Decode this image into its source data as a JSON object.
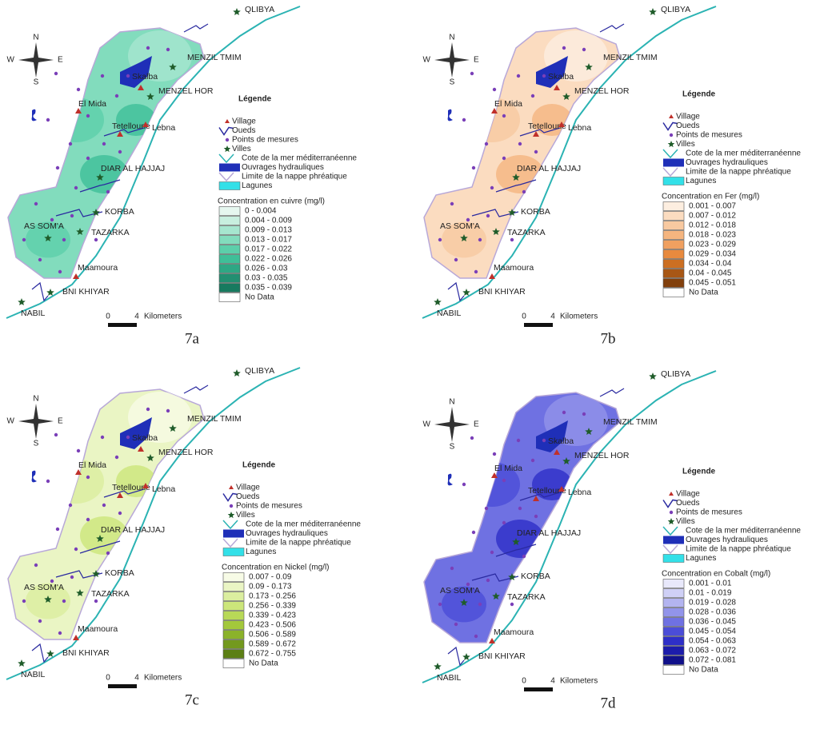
{
  "panels": [
    {
      "caption": "7a",
      "compass": {
        "n": "N",
        "s": "S",
        "e": "E",
        "w": "W"
      },
      "places": [
        "QLIBYA",
        "MENZIL TMIM",
        "Skalba",
        "MENZEL HOR",
        "El Mida",
        "Tetelloune",
        "Lebna",
        "DIAR AL HAJJAJ",
        "KORBA",
        "AS SOM'A",
        "TAZARKA",
        "Maamoura",
        "BNI KHIYAR",
        "NABIL"
      ],
      "legend": {
        "title": "Légende",
        "items": [
          "Village",
          "Oueds",
          "Points de mesures",
          "Villes",
          "Cote de la mer méditerranéenne",
          "Ouvrages hydrauliques",
          "Limite de la nappe phréatique",
          "Lagunes"
        ],
        "scale_title": "Concentration en cuivre (mg/l)",
        "classes": [
          {
            "label": "0 - 0.004",
            "color": "#e6f7ef"
          },
          {
            "label": "0.004 - 0.009",
            "color": "#c8efdf"
          },
          {
            "label": "0.009 - 0.013",
            "color": "#a6e6cf"
          },
          {
            "label": "0.013 - 0.017",
            "color": "#82dcbd"
          },
          {
            "label": "0.017 - 0.022",
            "color": "#5ccfaa"
          },
          {
            "label": "0.022 - 0.026",
            "color": "#3fbf98"
          },
          {
            "label": "0.026 - 0.03",
            "color": "#2ea784"
          },
          {
            "label": "0.03 - 0.035",
            "color": "#228f71"
          },
          {
            "label": "0.035 - 0.039",
            "color": "#177a5f"
          }
        ],
        "no_data": "No Data"
      },
      "scale": {
        "start": "0",
        "end": "4",
        "unit": "Kilometers"
      }
    },
    {
      "caption": "7b",
      "compass": {
        "n": "N",
        "s": "S",
        "e": "E",
        "w": "W"
      },
      "places": [
        "QLIBYA",
        "MENZIL TMIM",
        "Skalba",
        "MENZEL HOR",
        "El Mida",
        "Tetelloune",
        "Lebna",
        "DIAR AL HAJJAJ",
        "KORBA",
        "AS SOM'A",
        "TAZARKA",
        "Maamoura",
        "BNI KHIYAR",
        "NABIL"
      ],
      "legend": {
        "title": "Légende",
        "items": [
          "Village",
          "Oueds",
          "Points de mesures",
          "Villes",
          "Cote de la mer méditerranéenne",
          "Ouvrages hydrauliques",
          "Limite de la nappe phréatique",
          "Lagunes"
        ],
        "scale_title": "Concentration en Fer  (mg/l)",
        "classes": [
          {
            "label": "0.001 - 0.007",
            "color": "#fdeee0"
          },
          {
            "label": "0.007 - 0.012",
            "color": "#fbdcc0"
          },
          {
            "label": "0.012 - 0.018",
            "color": "#f8c9a0"
          },
          {
            "label": "0.018 - 0.023",
            "color": "#f5b57f"
          },
          {
            "label": "0.023 - 0.029",
            "color": "#f0a060"
          },
          {
            "label": "0.029 - 0.034",
            "color": "#e88a3e"
          },
          {
            "label": "0.034 - 0.04",
            "color": "#cc6f22"
          },
          {
            "label": "0.04 - 0.045",
            "color": "#a85715"
          },
          {
            "label": "0.045 - 0.051",
            "color": "#82400c"
          }
        ],
        "no_data": "No Data"
      },
      "scale": {
        "start": "0",
        "end": "4",
        "unit": "Kilometers"
      }
    },
    {
      "caption": "7c",
      "compass": {
        "n": "N",
        "s": "S",
        "e": "E",
        "w": "W"
      },
      "places": [
        "QLIBYA",
        "MENZIL TMIM",
        "Skalba",
        "MENZEL HOR",
        "El Mida",
        "Tetelloune",
        "Lebna",
        "DIAR AL HAJJAJ",
        "KORBA",
        "AS SOM'A",
        "TAZARKA",
        "Maamoura",
        "BNI KHIYAR",
        "NABIL"
      ],
      "legend": {
        "title": "Légende",
        "items": [
          "Village",
          "Oueds",
          "Points de mesures",
          "Villes",
          "Cote de la mer méditerranéenne",
          "Ouvrages hydrauliques",
          "Limite de la nappe phréatique",
          "Lagunes"
        ],
        "scale_title": "Concentration en Nickel (mg/l)",
        "classes": [
          {
            "label": "0.007 - 0.09",
            "color": "#f7fbe6"
          },
          {
            "label": "0.09 - 0.173",
            "color": "#eaf5c4"
          },
          {
            "label": "0.173 - 0.256",
            "color": "#dbee9f"
          },
          {
            "label": "0.256 - 0.339",
            "color": "#cce67a"
          },
          {
            "label": "0.339 - 0.423",
            "color": "#b8d957"
          },
          {
            "label": "0.423 - 0.506",
            "color": "#a3c83b"
          },
          {
            "label": "0.506 - 0.589",
            "color": "#8bb22a"
          },
          {
            "label": "0.589 - 0.672",
            "color": "#73991e"
          },
          {
            "label": "0.672 - 0.755",
            "color": "#5c7f14"
          }
        ],
        "no_data": "No Data"
      },
      "scale": {
        "start": "0",
        "end": "4",
        "unit": "Kilometers"
      }
    },
    {
      "caption": "7d",
      "compass": {
        "n": "N",
        "s": "S",
        "e": "E",
        "w": "W"
      },
      "places": [
        "QLIBYA",
        "MENZIL TMIM",
        "Skalba",
        "MENZEL HOR",
        "El Mida",
        "Tetelloune",
        "Lebna",
        "DIAR AL HAJJAJ",
        "KORBA",
        "AS SOM'A",
        "TAZARKA",
        "Maamoura",
        "BNI KHIYAR",
        "NABIL"
      ],
      "legend": {
        "title": "Légende",
        "items": [
          "Village",
          "Oueds",
          "Points de mesures",
          "Villes",
          "Cote de la mer méditerranéenne",
          "Ouvrages hydrauliques",
          "Limite de la nappe phréatique",
          "Lagunes"
        ],
        "scale_title": "Concentration en Cobalt (mg/l)",
        "classes": [
          {
            "label": "0.001 - 0.01",
            "color": "#e8e8fb"
          },
          {
            "label": "0.01 - 0.019",
            "color": "#cfd0f6"
          },
          {
            "label": "0.019 - 0.028",
            "color": "#b3b4f0"
          },
          {
            "label": "0.028 - 0.036",
            "color": "#9294ea"
          },
          {
            "label": "0.036 - 0.045",
            "color": "#6f71e2"
          },
          {
            "label": "0.045 - 0.054",
            "color": "#4b4dd8"
          },
          {
            "label": "0.054 - 0.063",
            "color": "#2e2fc8"
          },
          {
            "label": "0.063 - 0.072",
            "color": "#1c1cab"
          },
          {
            "label": "0.072 - 0.081",
            "color": "#10108a"
          }
        ],
        "no_data": "No Data"
      },
      "scale": {
        "start": "0",
        "end": "4",
        "unit": "Kilometers"
      }
    }
  ]
}
